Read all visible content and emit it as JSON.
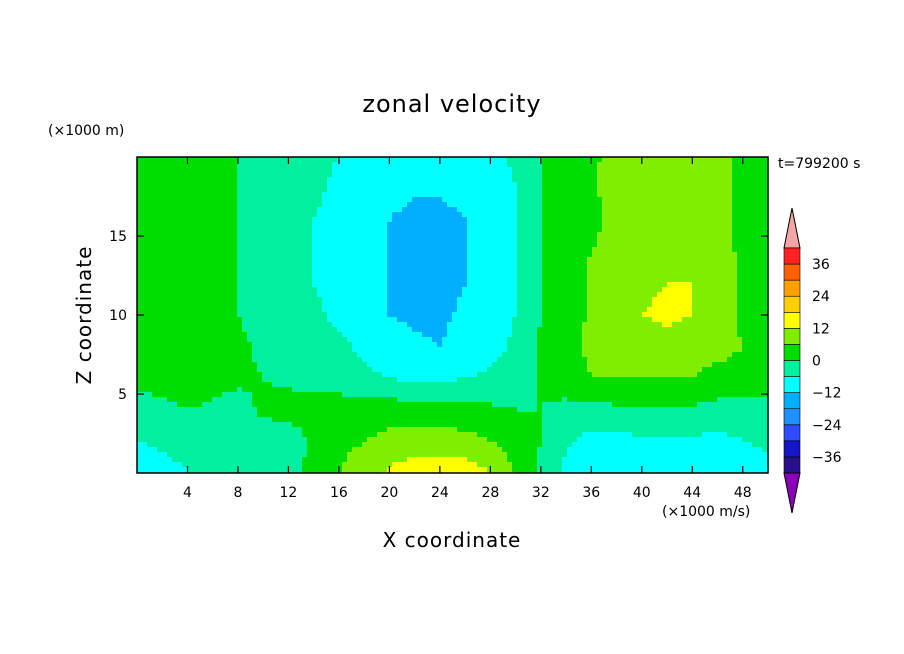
{
  "chart_data": {
    "type": "heatmap",
    "title": "zonal velocity",
    "xlabel": "X coordinate",
    "ylabel": "Z coordinate",
    "x_unit": "(×1000 m/s)",
    "y_unit": "(×1000 m)",
    "time_label": "t=799200 s",
    "xlim": [
      0,
      50
    ],
    "ylim": [
      0,
      20
    ],
    "xticks": [
      4,
      8,
      12,
      16,
      20,
      24,
      28,
      32,
      36,
      40,
      44,
      48
    ],
    "yticks": [
      5,
      10,
      15
    ],
    "colorbar": {
      "levels": [
        -42,
        -36,
        -30,
        -24,
        -18,
        -12,
        -6,
        0,
        6,
        12,
        18,
        24,
        30,
        36,
        42
      ],
      "tick_labels": [
        "36",
        "24",
        "12",
        "0",
        "-12",
        "-24",
        "-36"
      ],
      "tick_values": [
        36,
        24,
        12,
        0,
        -12,
        -24,
        -36
      ],
      "colors": [
        "#6a0dad",
        "#2a0f8c",
        "#1515c8",
        "#2e4bff",
        "#1e90ff",
        "#00b0ff",
        "#00ffff",
        "#00f0a0",
        "#00dd00",
        "#80ee00",
        "#ffff00",
        "#ffd000",
        "#ffa000",
        "#ff6000",
        "#ff2020",
        "#ff0000",
        "#f4a6a6"
      ],
      "under_color": "#8b00b8",
      "over_color": "#f4a6a6"
    },
    "field": {
      "nx": 26,
      "nz": 11,
      "x_values": [
        0,
        2,
        4,
        6,
        8,
        10,
        12,
        14,
        16,
        18,
        20,
        22,
        24,
        26,
        28,
        30,
        32,
        34,
        36,
        38,
        40,
        42,
        44,
        46,
        48,
        50
      ],
      "z_values": [
        0,
        2,
        4,
        6,
        8,
        10,
        12,
        14,
        16,
        18,
        20
      ],
      "values": [
        [
          -10,
          -8,
          -6,
          -2,
          -1,
          -3,
          -2,
          2,
          6,
          10,
          13,
          15,
          16,
          15,
          12,
          6,
          -1,
          -8,
          -12,
          -10,
          -9,
          -10,
          -10,
          -12,
          -9,
          -8
        ],
        [
          -6,
          -5,
          -4,
          -3,
          -2,
          -3,
          -3,
          1,
          4,
          6,
          8,
          9,
          9,
          8,
          6,
          3,
          0,
          -5,
          -8,
          -8,
          -7,
          -7,
          -7,
          -8,
          -6,
          -5
        ],
        [
          -3,
          -2,
          0,
          -1,
          -2,
          1,
          2,
          2,
          3,
          3,
          3,
          3,
          3,
          2,
          1,
          0,
          0,
          -2,
          -2,
          -1,
          -1,
          -1,
          -1,
          -2,
          -2,
          -2
        ],
        [
          2,
          3,
          4,
          2,
          1,
          0,
          -1,
          -2,
          -3,
          -5,
          -6,
          -7,
          -7,
          -6,
          -5,
          -3,
          1,
          4,
          6,
          6,
          6,
          6,
          6,
          4,
          4,
          4
        ],
        [
          4,
          4,
          3,
          2,
          1,
          -1,
          -3,
          -4,
          -5,
          -7,
          -9,
          -11,
          -12,
          -10,
          -8,
          -5,
          1,
          4,
          7,
          9,
          10,
          10,
          9,
          8,
          6,
          3
        ],
        [
          4,
          4,
          3,
          2,
          0,
          -2,
          -4,
          -5,
          -7,
          -9,
          -12,
          -13,
          -13,
          -11,
          -9,
          -6,
          0,
          3,
          7,
          11,
          12,
          13,
          12,
          9,
          5,
          3
        ],
        [
          5,
          4,
          3,
          2,
          0,
          -2,
          -4,
          -6,
          -8,
          -10,
          -12,
          -14,
          -14,
          -12,
          -9,
          -7,
          0,
          3,
          7,
          10,
          11,
          12,
          12,
          9,
          5,
          3
        ],
        [
          5,
          4,
          3,
          2,
          0,
          -2,
          -4,
          -6,
          -8,
          -10,
          -12,
          -14,
          -15,
          -12,
          -10,
          -7,
          0,
          3,
          6,
          9,
          10,
          11,
          10,
          8,
          5,
          3
        ],
        [
          6,
          5,
          3,
          2,
          0,
          -2,
          -4,
          -6,
          -8,
          -10,
          -12,
          -14,
          -14,
          -12,
          -10,
          -7,
          0,
          2,
          4,
          8,
          10,
          10,
          9,
          8,
          5,
          3
        ],
        [
          5,
          4,
          3,
          1,
          0,
          -2,
          -4,
          -5,
          -7,
          -9,
          -10,
          -11,
          -11,
          -10,
          -9,
          -6,
          0,
          2,
          5,
          9,
          9,
          9,
          8,
          7,
          5,
          3
        ],
        [
          5,
          4,
          2,
          1,
          0,
          -2,
          -4,
          -5,
          -6,
          -8,
          -9,
          -9,
          -9,
          -9,
          -8,
          -5,
          0,
          2,
          5,
          8,
          9,
          9,
          8,
          7,
          5,
          3
        ]
      ]
    }
  }
}
